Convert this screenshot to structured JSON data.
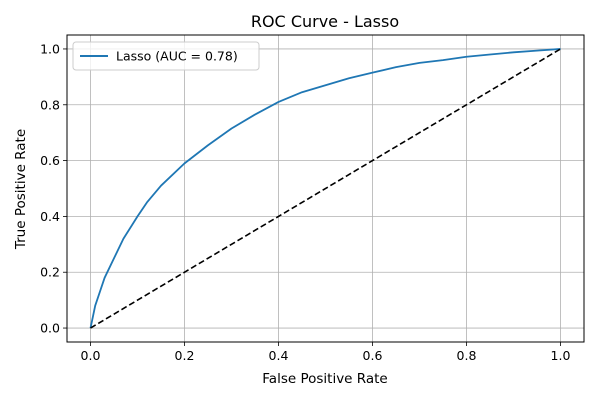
{
  "chart_data": {
    "type": "line",
    "title": "ROC Curve - Lasso",
    "xlabel": "False Positive Rate",
    "ylabel": "True Positive Rate",
    "xlim": [
      -0.05,
      1.05
    ],
    "ylim": [
      -0.05,
      1.05
    ],
    "x_ticks": [
      0.0,
      0.2,
      0.4,
      0.6,
      0.8,
      1.0
    ],
    "y_ticks": [
      0.0,
      0.2,
      0.4,
      0.6,
      0.8,
      1.0
    ],
    "x_tick_labels": [
      "0.0",
      "0.2",
      "0.4",
      "0.6",
      "0.8",
      "1.0"
    ],
    "y_tick_labels": [
      "0.0",
      "0.2",
      "0.4",
      "0.6",
      "0.8",
      "1.0"
    ],
    "grid": true,
    "legend_position": "upper-left",
    "series": [
      {
        "name": "Lasso (AUC = 0.78)",
        "color": "#1f77b4",
        "style": "solid",
        "x": [
          0.0,
          0.005,
          0.01,
          0.02,
          0.03,
          0.05,
          0.07,
          0.1,
          0.12,
          0.15,
          0.2,
          0.25,
          0.3,
          0.35,
          0.4,
          0.45,
          0.5,
          0.55,
          0.6,
          0.65,
          0.7,
          0.75,
          0.8,
          0.85,
          0.9,
          0.95,
          1.0
        ],
        "y": [
          0.0,
          0.04,
          0.08,
          0.13,
          0.18,
          0.25,
          0.32,
          0.4,
          0.45,
          0.51,
          0.59,
          0.655,
          0.715,
          0.765,
          0.81,
          0.845,
          0.87,
          0.895,
          0.915,
          0.935,
          0.95,
          0.96,
          0.972,
          0.98,
          0.988,
          0.994,
          1.0
        ]
      },
      {
        "name": "",
        "color": "#000000",
        "style": "dashed",
        "x": [
          0.0,
          1.0
        ],
        "y": [
          0.0,
          1.0
        ]
      }
    ]
  }
}
